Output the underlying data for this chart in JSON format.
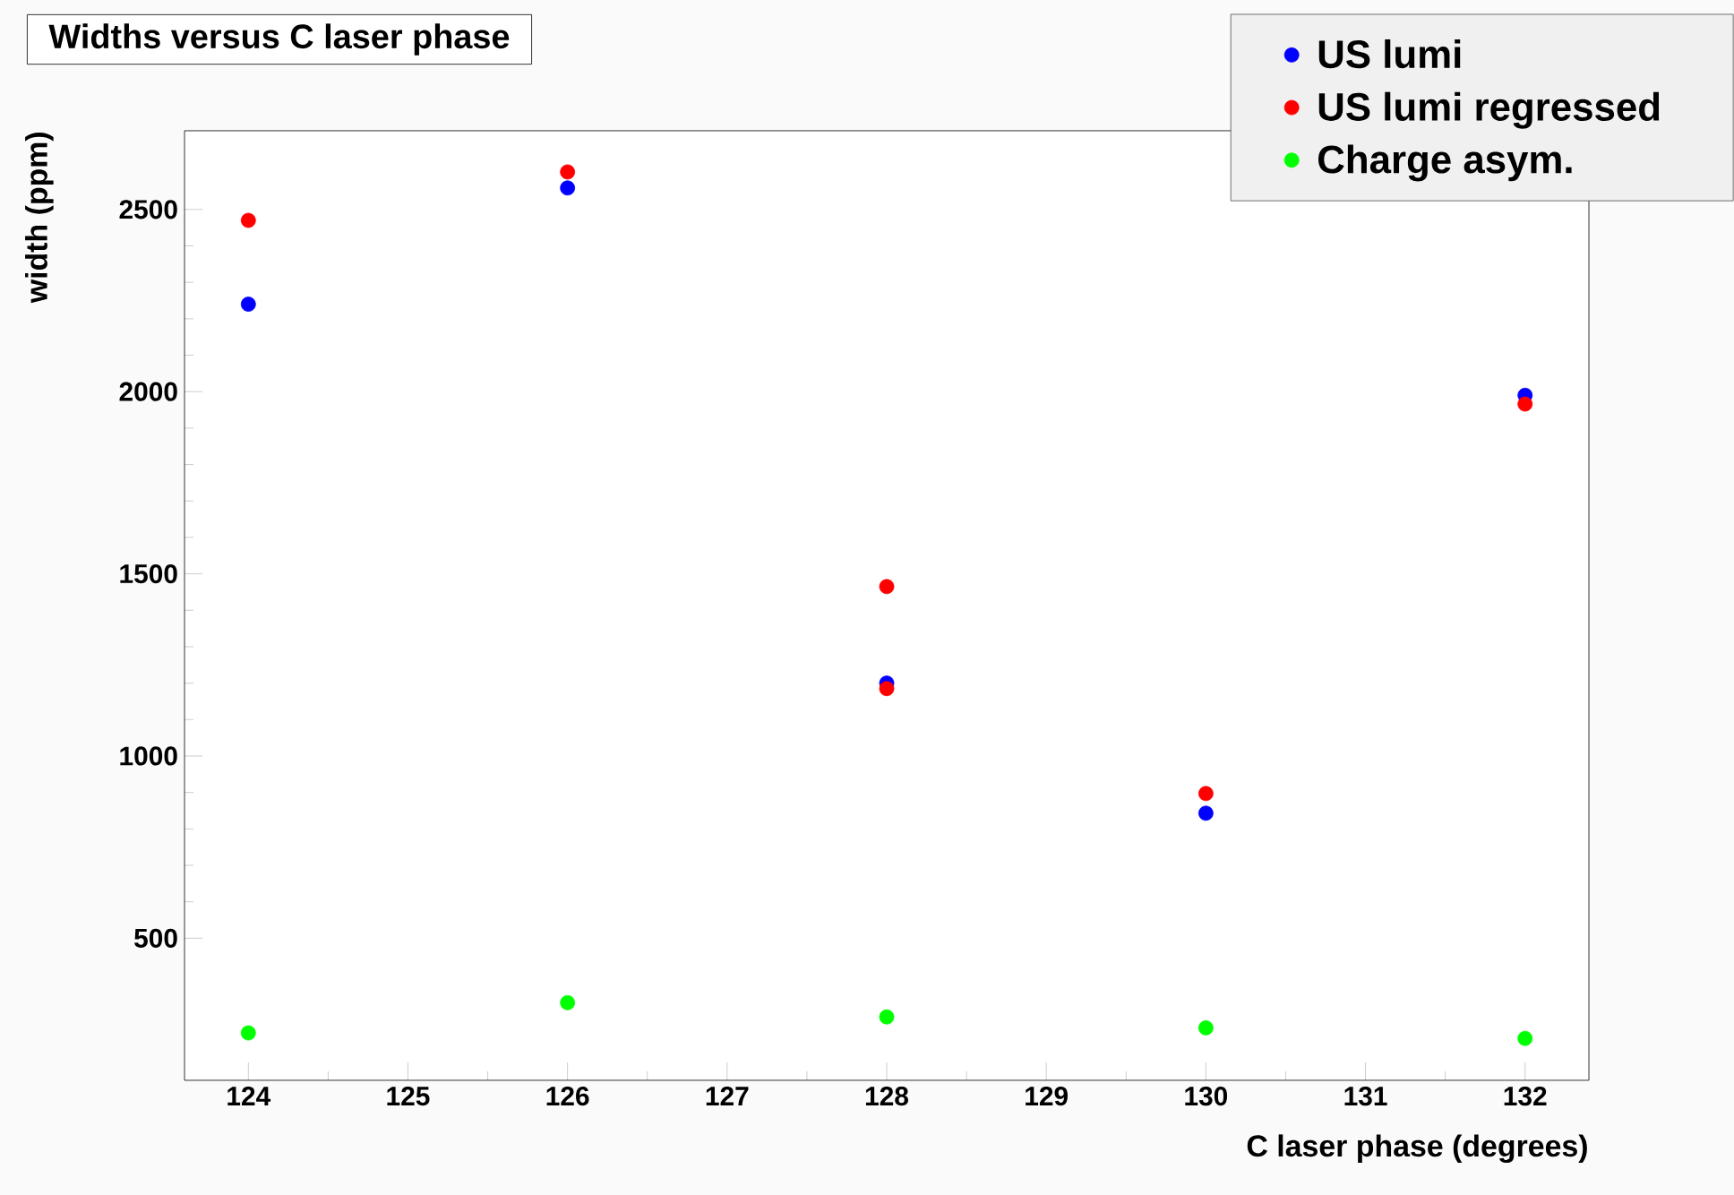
{
  "chart_data": {
    "type": "scatter",
    "title": "Widths versus C laser phase",
    "xlabel": "C laser phase   (degrees)",
    "ylabel": "width  (ppm)",
    "xlim": [
      123.6,
      132.4
    ],
    "ylim": [
      110,
      2716
    ],
    "xticks": [
      124,
      125,
      126,
      127,
      128,
      129,
      130,
      131,
      132
    ],
    "yticks": [
      500,
      1000,
      1500,
      2000,
      2500
    ],
    "legend": "top right",
    "marker": "circle",
    "series": [
      {
        "name": "US lumi",
        "color": "#0000ff",
        "x": [
          124,
          126,
          128,
          130,
          132
        ],
        "values": [
          2240,
          2559,
          1200,
          843,
          1990
        ]
      },
      {
        "name": "US lumi regressed",
        "color": "#ff0000",
        "x": [
          124,
          126,
          128,
          128,
          130,
          132
        ],
        "values": [
          2470,
          2603,
          1465,
          1185,
          897,
          1966
        ]
      },
      {
        "name": "Charge asym.",
        "color": "#00ff00",
        "x": [
          124,
          126,
          128,
          130,
          132
        ],
        "values": [
          240,
          323,
          284,
          254,
          225
        ]
      }
    ]
  }
}
